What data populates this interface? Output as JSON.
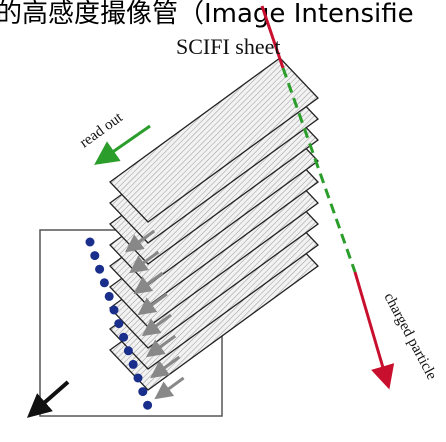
{
  "header": {
    "caption": "的高感度撮像管（Image Intensifie"
  },
  "labels": {
    "sheet": "SCIFI sheet",
    "readout": "read out",
    "particle": "charged particle"
  }
}
